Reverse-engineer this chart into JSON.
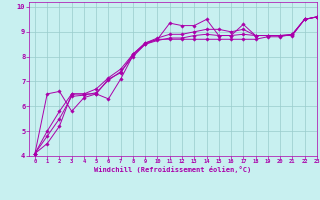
{
  "xlabel": "Windchill (Refroidissement éolien,°C)",
  "ylabel": "",
  "xlim": [
    -0.5,
    23
  ],
  "ylim": [
    4,
    10.2
  ],
  "yticks": [
    4,
    5,
    6,
    7,
    8,
    9,
    10
  ],
  "xticks": [
    0,
    1,
    2,
    3,
    4,
    5,
    6,
    7,
    8,
    9,
    10,
    11,
    12,
    13,
    14,
    15,
    16,
    17,
    18,
    19,
    20,
    21,
    22,
    23
  ],
  "bg_color": "#c8f0f0",
  "line_color": "#aa00aa",
  "grid_color": "#99cccc",
  "curves": [
    [
      4.1,
      6.5,
      6.6,
      5.8,
      6.35,
      6.5,
      6.3,
      7.1,
      8.05,
      8.5,
      8.7,
      9.35,
      9.25,
      9.25,
      9.5,
      8.85,
      8.85,
      9.3,
      8.85,
      8.85,
      8.85,
      8.85,
      9.5,
      9.6
    ],
    [
      4.1,
      4.5,
      5.2,
      6.5,
      6.5,
      6.5,
      7.1,
      7.35,
      8.1,
      8.55,
      8.7,
      8.7,
      8.7,
      8.7,
      8.7,
      8.7,
      8.7,
      8.7,
      8.7,
      8.8,
      8.8,
      8.9,
      9.5,
      9.6
    ],
    [
      4.1,
      5.0,
      5.8,
      6.5,
      6.5,
      6.7,
      7.15,
      7.5,
      8.1,
      8.55,
      8.75,
      8.9,
      8.9,
      9.0,
      9.1,
      9.1,
      9.0,
      9.1,
      8.85,
      8.85,
      8.85,
      8.9,
      9.5,
      9.6
    ],
    [
      4.1,
      4.8,
      5.5,
      6.4,
      6.45,
      6.55,
      7.05,
      7.4,
      8.0,
      8.5,
      8.65,
      8.75,
      8.75,
      8.85,
      8.9,
      8.85,
      8.85,
      8.9,
      8.85,
      8.85,
      8.85,
      8.88,
      9.5,
      9.6
    ]
  ]
}
